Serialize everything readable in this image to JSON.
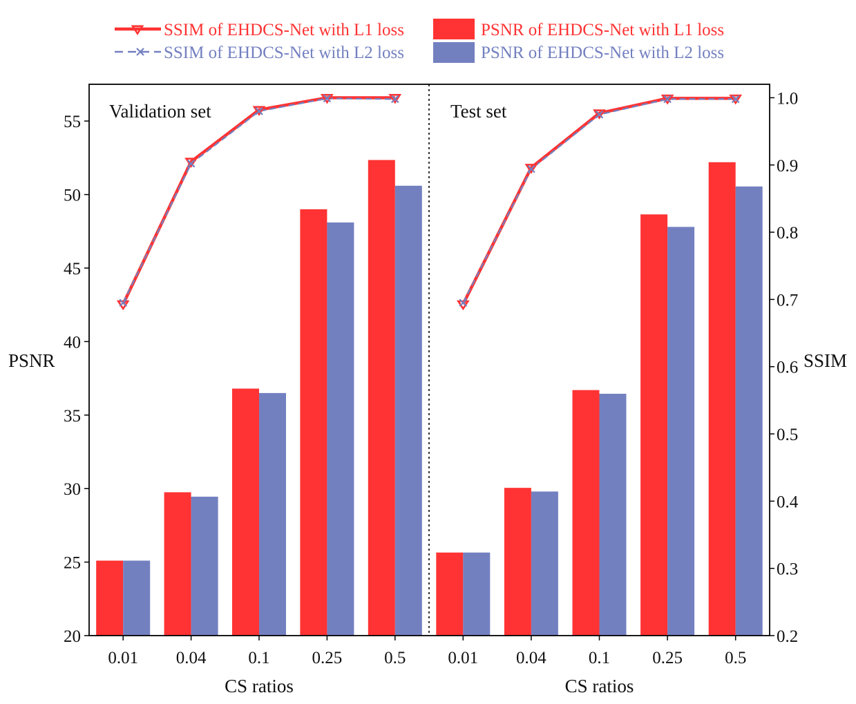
{
  "chart_data": {
    "type": "bar",
    "categories": [
      "0.01",
      "0.04",
      "0.1",
      "0.25",
      "0.5"
    ],
    "xlabel": "CS ratios",
    "ylabel_left": "PSNR",
    "ylabel_right": "SSIM",
    "ylim_left": [
      20,
      57.5
    ],
    "ylim_right": [
      0.2,
      1.02
    ],
    "yticks_left": [
      "20",
      "25",
      "30",
      "35",
      "40",
      "45",
      "50",
      "55"
    ],
    "yticks_right": [
      "0.2",
      "0.3",
      "0.4",
      "0.5",
      "0.6",
      "0.7",
      "0.8",
      "0.9",
      "1.0"
    ],
    "colors": {
      "l1": "#ff3333",
      "l2": "#7380c0"
    },
    "legend": {
      "ssim_l1": "SSIM of EHDCS-Net with L1 loss",
      "ssim_l2": "SSIM of EHDCS-Net with L2 loss",
      "psnr_l1": "PSNR of EHDCS-Net with L1 loss",
      "psnr_l2": "PSNR of EHDCS-Net with L2 loss"
    },
    "panels": [
      {
        "label": "Validation set",
        "psnr_l1": [
          25.1,
          29.75,
          36.8,
          49.0,
          52.35
        ],
        "psnr_l2": [
          25.1,
          29.45,
          36.5,
          48.1,
          50.6
        ],
        "ssim_l1": [
          0.693,
          0.905,
          0.982,
          1.0,
          1.0
        ],
        "ssim_l2": [
          0.695,
          0.902,
          0.98,
          0.999,
          0.998
        ]
      },
      {
        "label": "Test set",
        "psnr_l1": [
          25.65,
          30.05,
          36.7,
          48.65,
          52.2
        ],
        "psnr_l2": [
          25.65,
          29.8,
          36.45,
          47.8,
          50.55
        ],
        "ssim_l1": [
          0.693,
          0.896,
          0.977,
          0.999,
          0.999
        ],
        "ssim_l2": [
          0.695,
          0.894,
          0.975,
          0.998,
          0.998
        ]
      }
    ]
  }
}
